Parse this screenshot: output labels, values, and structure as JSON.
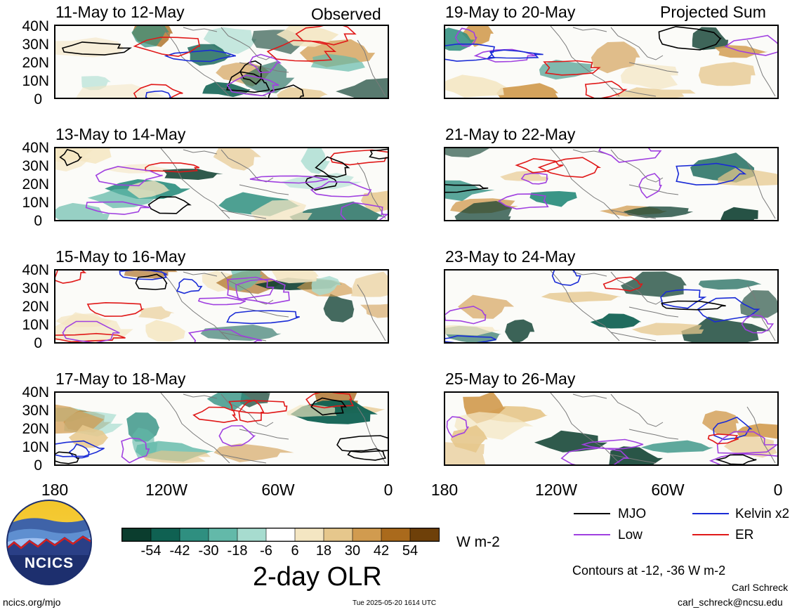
{
  "header": {
    "observed": "Observed",
    "projected": "Projected Sum"
  },
  "panels": [
    {
      "title": "11-May to 12-May",
      "col": 0,
      "row": 0
    },
    {
      "title": "13-May to 14-May",
      "col": 0,
      "row": 1
    },
    {
      "title": "15-May to 16-May",
      "col": 0,
      "row": 2
    },
    {
      "title": "17-May to 18-May",
      "col": 0,
      "row": 3
    },
    {
      "title": "19-May to 20-May",
      "col": 1,
      "row": 0
    },
    {
      "title": "21-May to 22-May",
      "col": 1,
      "row": 1
    },
    {
      "title": "23-May to 24-May",
      "col": 1,
      "row": 2
    },
    {
      "title": "25-May to 26-May",
      "col": 1,
      "row": 3
    }
  ],
  "lat_labels": [
    "40N",
    "30N",
    "20N",
    "10N",
    "0"
  ],
  "lon_labels": [
    "180",
    "120W",
    "60W",
    "0"
  ],
  "colorbar": {
    "colors": [
      "#0b3d2e",
      "#0f6152",
      "#2f8f80",
      "#63b9a9",
      "#a7dccf",
      "#ffffff",
      "#f4e6c2",
      "#e6c78c",
      "#d19b4f",
      "#aa6a1c",
      "#6e4009"
    ],
    "labels": [
      "-54",
      "-42",
      "-30",
      "-18",
      "-6",
      "6",
      "18",
      "30",
      "42",
      "54"
    ],
    "units": "W m-2",
    "title": "2-day OLR"
  },
  "legend": [
    {
      "label": "MJO",
      "color": "#000000"
    },
    {
      "label": "Kelvin x2",
      "color": "#1a2bd6"
    },
    {
      "label": "Low",
      "color": "#a040e0"
    },
    {
      "label": "ER",
      "color": "#e01818"
    }
  ],
  "contour_note": "Contours at -12, -36 W m-2",
  "logo": {
    "text": "NCICS"
  },
  "footer": {
    "left": "ncics.org/mjo",
    "center": "Tue 2025-05-20 1614 UTC",
    "author": "Carl Schreck",
    "email": "carl_schreck@ncsu.edu"
  }
}
